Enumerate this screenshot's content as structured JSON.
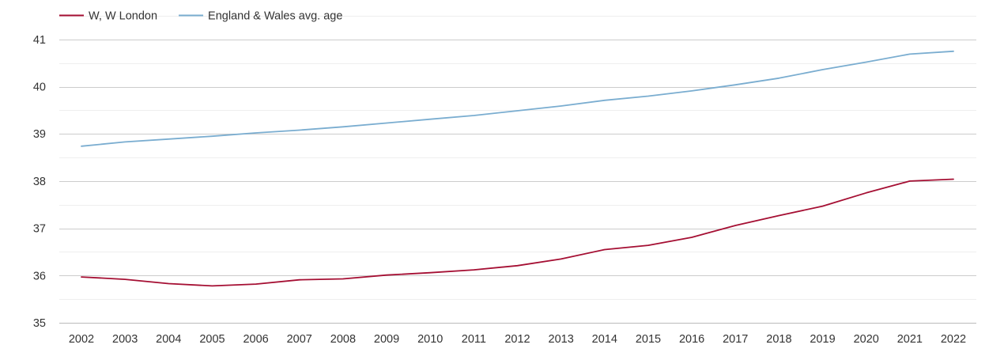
{
  "chart_data": {
    "type": "line",
    "x": [
      "2002",
      "2003",
      "2004",
      "2005",
      "2006",
      "2007",
      "2008",
      "2009",
      "2010",
      "2011",
      "2012",
      "2013",
      "2014",
      "2015",
      "2016",
      "2017",
      "2018",
      "2019",
      "2020",
      "2021",
      "2022"
    ],
    "series": [
      {
        "name": "W, W London",
        "color": "#a50f33",
        "values": [
          35.97,
          35.92,
          35.83,
          35.78,
          35.82,
          35.91,
          35.93,
          36.01,
          36.06,
          36.12,
          36.21,
          36.35,
          36.55,
          36.64,
          36.81,
          37.06,
          37.27,
          37.47,
          37.75,
          38.0,
          38.04
        ]
      },
      {
        "name": "England & Wales avg. age",
        "color": "#7aadd0",
        "values": [
          38.74,
          38.83,
          38.89,
          38.95,
          39.02,
          39.08,
          39.15,
          39.23,
          39.31,
          39.39,
          39.49,
          39.59,
          39.71,
          39.8,
          39.91,
          40.04,
          40.18,
          40.36,
          40.52,
          40.69,
          40.75
        ]
      }
    ],
    "yticks": [
      35,
      36,
      37,
      38,
      39,
      40,
      41
    ],
    "ylim": [
      35,
      41.5
    ],
    "grid": true,
    "legend_position": "top-left"
  }
}
